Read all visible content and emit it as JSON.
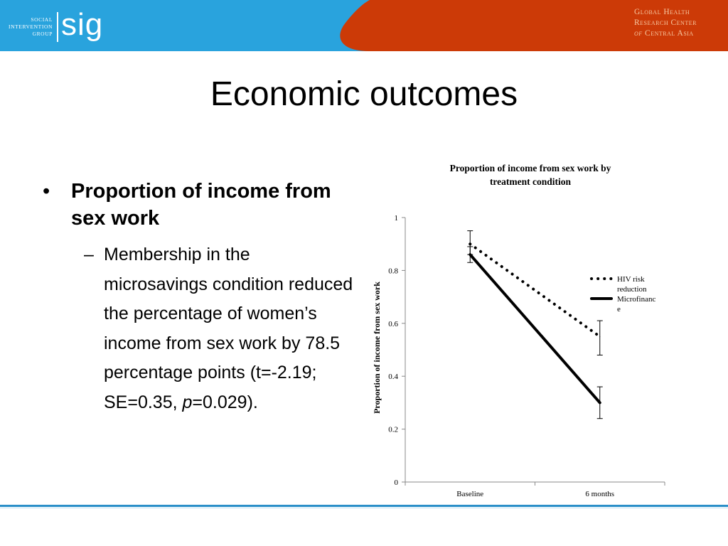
{
  "header": {
    "logo_small": [
      "SOCIAL",
      "INTERVENTION",
      "GROUP"
    ],
    "logo_word": "sig",
    "center_lines": [
      "Global Health",
      "Research Center",
      "of",
      "Central Asia"
    ],
    "colors": {
      "blue": "#29a3dd",
      "orange": "#cc3a07"
    }
  },
  "slide": {
    "title": "Economic outcomes",
    "bullet_main": "Proportion of income from sex work",
    "bullet_sub_pre": "Membership in the microsavings condition reduced the percentage of women’s income from sex work by 78.5 percentage points (t=-2.19; SE=0.35, ",
    "bullet_sub_p": "p",
    "bullet_sub_post": "=0.029)."
  },
  "chart_data": {
    "type": "line",
    "title_lines": [
      "Proportion of income from sex work by",
      "treatment condition"
    ],
    "xlabel": "",
    "ylabel": "Proportion of income from sex work",
    "categories": [
      "Baseline",
      "6 months"
    ],
    "yticks": [
      "0",
      "0.2",
      "0.4",
      "0.6",
      "0.8",
      "1"
    ],
    "ylim": [
      0,
      1
    ],
    "grid": false,
    "legend_position": "right",
    "series": [
      {
        "name": "HIV risk reduction",
        "name_lines": [
          "HIV risk",
          "reduction"
        ],
        "style": "dotted",
        "values": [
          0.9,
          0.55
        ],
        "error": [
          [
            0.86,
            0.95
          ],
          [
            0.48,
            0.61
          ]
        ]
      },
      {
        "name": "Microfinance",
        "name_lines": [
          "Microfinanc",
          "e"
        ],
        "style": "solid",
        "values": [
          0.86,
          0.3
        ],
        "error": [
          [
            0.83,
            0.89
          ],
          [
            0.24,
            0.36
          ]
        ]
      }
    ]
  }
}
